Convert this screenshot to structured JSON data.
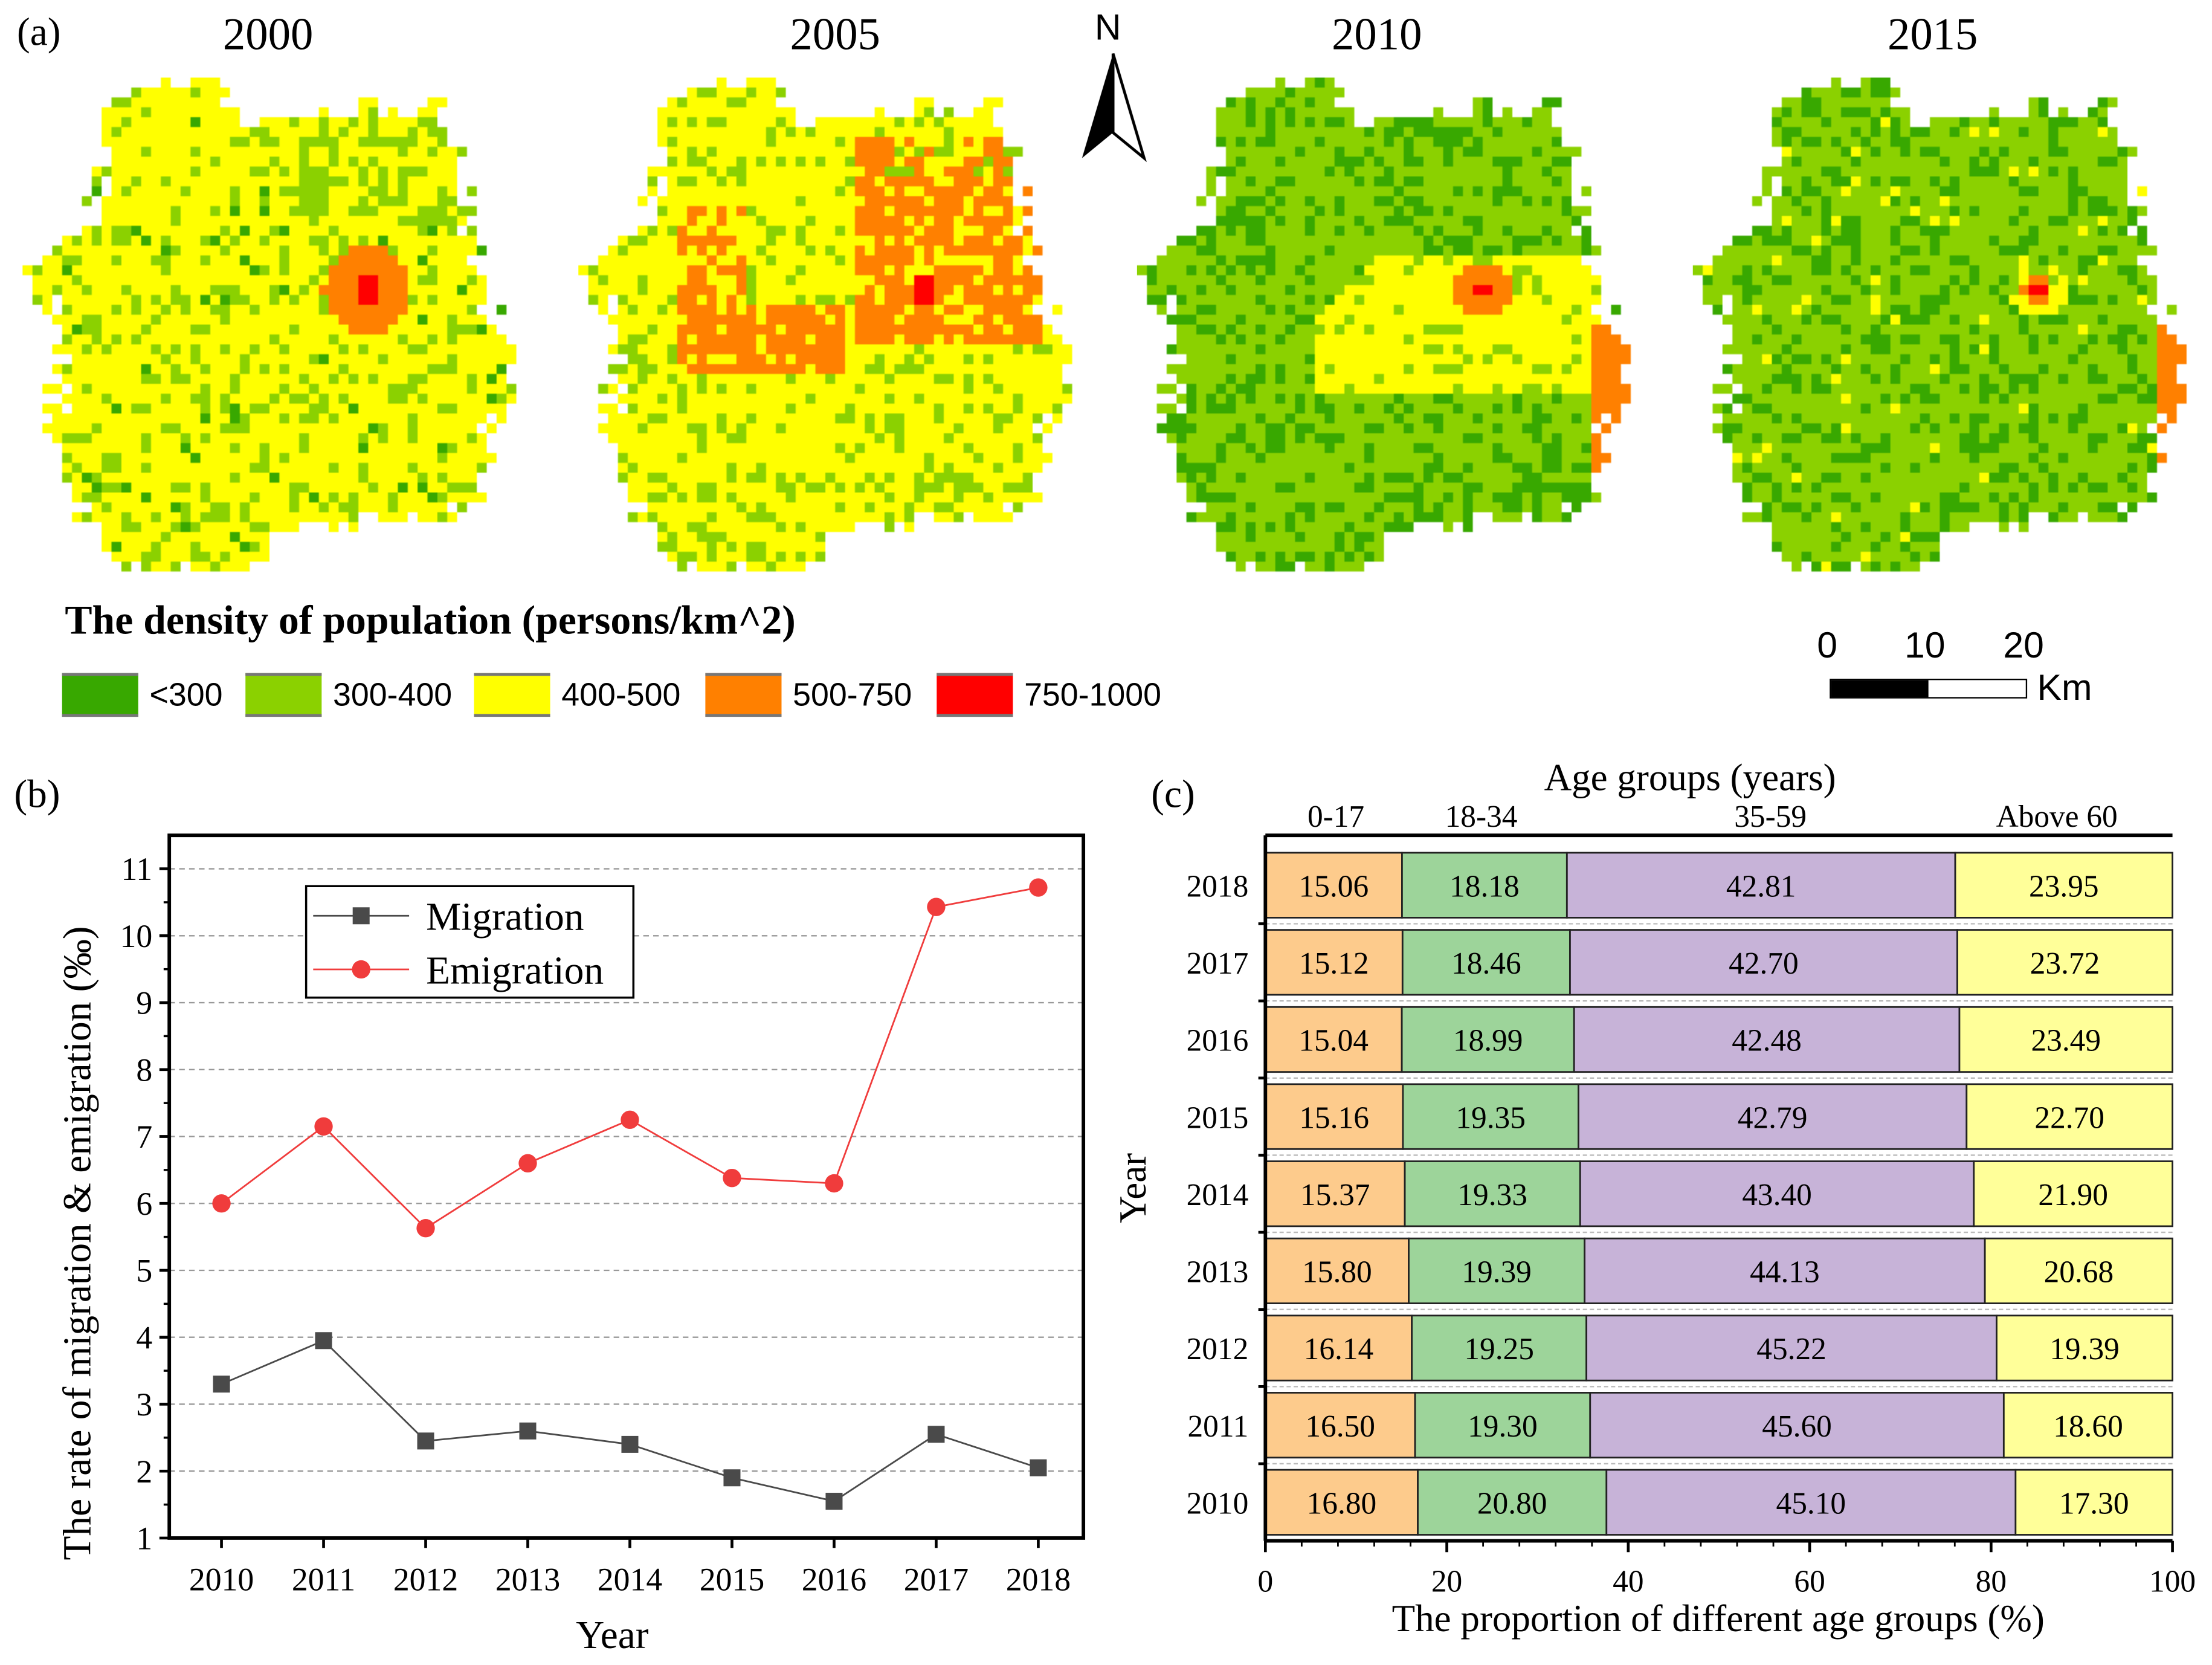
{
  "panel_a": {
    "label": "(a)",
    "years": [
      "2000",
      "2005",
      "2010",
      "2015"
    ],
    "north_label": "N",
    "legend": {
      "title": "The density of population (persons/km^2)",
      "classes": [
        {
          "label": "<300",
          "color": "#38a800"
        },
        {
          "label": "300-400",
          "color": "#8bd100"
        },
        {
          "label": "400-500",
          "color": "#ffff00"
        },
        {
          "label": "500-750",
          "color": "#ff8000"
        },
        {
          "label": "750-1000",
          "color": "#ff0000"
        }
      ]
    },
    "scale_bar": {
      "ticks": [
        "0",
        "10",
        "20"
      ],
      "unit": "Km"
    }
  },
  "chart_data": [
    {
      "type": "line",
      "panel_label": "(b)",
      "x": [
        2010,
        2011,
        2012,
        2013,
        2014,
        2015,
        2016,
        2017,
        2018
      ],
      "x_tick_labels": [
        "2010",
        "2011",
        "2012",
        "2013",
        "2014",
        "2015",
        "2016",
        "2017",
        "2018"
      ],
      "series": [
        {
          "name": "Migration",
          "color": "#4a4a4a",
          "marker": "square",
          "values": [
            3.3,
            3.95,
            2.45,
            2.6,
            2.4,
            1.9,
            1.55,
            2.55,
            2.05
          ]
        },
        {
          "name": "Emigration",
          "color": "#f03c3c",
          "marker": "circle",
          "values": [
            6.0,
            7.15,
            5.63,
            6.6,
            7.25,
            6.38,
            6.3,
            10.43,
            10.72
          ]
        }
      ],
      "xlabel": "Year",
      "ylabel": "The rate of migration & emigration (‰)",
      "ylim": [
        1,
        11.5
      ],
      "y_ticks": [
        "1",
        "2",
        "3",
        "4",
        "5",
        "6",
        "7",
        "8",
        "9",
        "10",
        "11"
      ],
      "grid": "horizontal dashed",
      "legend_position": "top-left"
    },
    {
      "type": "bar",
      "orientation": "horizontal stacked",
      "panel_label": "(c)",
      "title": "Age groups (years)",
      "categories": [
        "2018",
        "2017",
        "2016",
        "2015",
        "2014",
        "2013",
        "2012",
        "2011",
        "2010"
      ],
      "series": [
        {
          "name": "0-17",
          "color": "#fdcb8c",
          "values": [
            15.06,
            15.12,
            15.04,
            15.16,
            15.37,
            15.8,
            16.14,
            16.5,
            16.8
          ],
          "labels": [
            "15.06",
            "15.12",
            "15.04",
            "15.16",
            "15.37",
            "15.80",
            "16.14",
            "16.50",
            "16.80"
          ]
        },
        {
          "name": "18-34",
          "color": "#9dd49a",
          "values": [
            18.18,
            18.46,
            18.99,
            19.35,
            19.33,
            19.39,
            19.25,
            19.3,
            20.8
          ],
          "labels": [
            "18.18",
            "18.46",
            "18.99",
            "19.35",
            "19.33",
            "19.39",
            "19.25",
            "19.30",
            "20.80"
          ]
        },
        {
          "name": "35-59",
          "color": "#c7b3d8",
          "values": [
            42.81,
            42.7,
            42.48,
            42.79,
            43.4,
            44.13,
            45.22,
            45.6,
            45.1
          ],
          "labels": [
            "42.81",
            "42.70",
            "42.48",
            "42.79",
            "43.40",
            "44.13",
            "45.22",
            "45.60",
            "45.10"
          ]
        },
        {
          "name": "Above 60",
          "color": "#ffff99",
          "values": [
            23.95,
            23.72,
            23.49,
            22.7,
            21.9,
            20.68,
            19.39,
            18.6,
            17.3
          ],
          "labels": [
            "23.95",
            "23.72",
            "23.49",
            "22.70",
            "21.90",
            "20.68",
            "19.39",
            "18.60",
            "17.30"
          ]
        }
      ],
      "xlabel": "The proportion of different age groups (%)",
      "ylabel": "Year",
      "xlim": [
        0,
        100
      ],
      "x_ticks": [
        "0",
        "20",
        "40",
        "60",
        "80",
        "100"
      ]
    }
  ]
}
